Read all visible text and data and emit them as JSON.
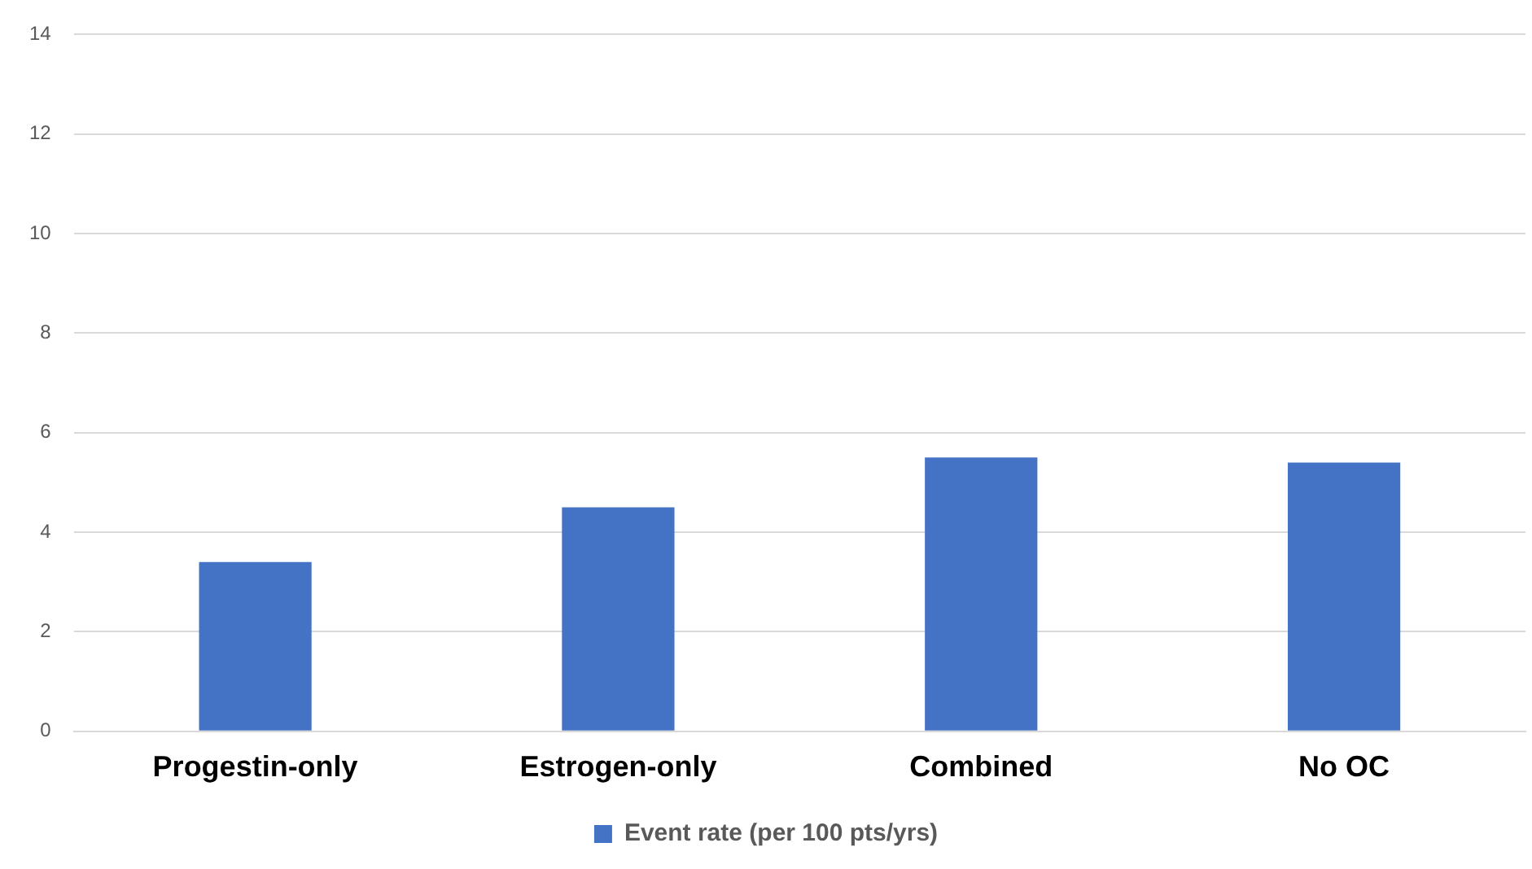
{
  "chart_data": {
    "type": "bar",
    "categories": [
      "Progestin-only",
      "Estrogen-only",
      "Combined",
      "No OC"
    ],
    "series": [
      {
        "name": "Event rate (per 100 pts/yrs)",
        "color": "#4472c4",
        "values": [
          3.4,
          4.5,
          5.5,
          5.4
        ]
      }
    ],
    "ylim": [
      0,
      14
    ],
    "yticks": [
      0,
      2,
      4,
      6,
      8,
      10,
      12,
      14
    ],
    "grid": "y",
    "legend": "bottom"
  }
}
